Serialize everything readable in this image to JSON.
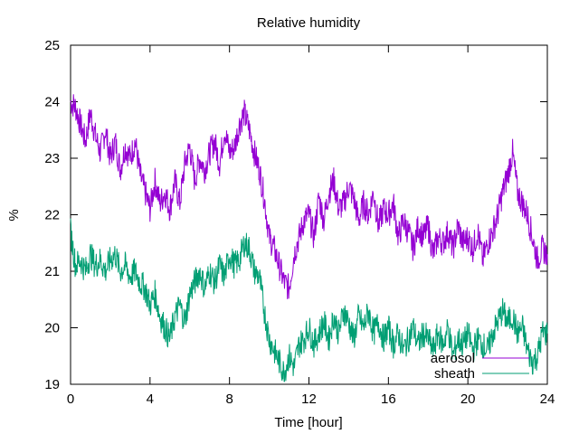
{
  "chart_data": {
    "type": "line",
    "title": "Relative humidity",
    "xlabel": "Time [hour]",
    "ylabel": "%",
    "xlim": [
      0,
      24
    ],
    "ylim": [
      19,
      25
    ],
    "xticks": [
      0,
      4,
      8,
      12,
      16,
      20,
      24
    ],
    "yticks": [
      19,
      20,
      21,
      22,
      23,
      24,
      25
    ],
    "grid": false,
    "legend_position": "bottom-right",
    "series": [
      {
        "name": "aerosol",
        "color": "#9400d3",
        "x": [
          0,
          0.25,
          0.5,
          0.75,
          1,
          1.25,
          1.5,
          1.75,
          2,
          2.25,
          2.5,
          2.75,
          3,
          3.25,
          3.5,
          3.75,
          4,
          4.25,
          4.5,
          4.75,
          5,
          5.25,
          5.5,
          5.75,
          6,
          6.25,
          6.5,
          6.75,
          7,
          7.25,
          7.5,
          7.75,
          8,
          8.25,
          8.5,
          8.75,
          9,
          9.25,
          9.5,
          9.75,
          10,
          10.25,
          10.5,
          10.75,
          11,
          11.25,
          11.5,
          11.75,
          12,
          12.25,
          12.5,
          12.75,
          13,
          13.25,
          13.5,
          13.75,
          14,
          14.25,
          14.5,
          14.75,
          15,
          15.25,
          15.5,
          15.75,
          16,
          16.25,
          16.5,
          16.75,
          17,
          17.25,
          17.5,
          17.75,
          18,
          18.25,
          18.5,
          18.75,
          19,
          19.25,
          19.5,
          19.75,
          20,
          20.25,
          20.5,
          20.75,
          21,
          21.25,
          21.5,
          21.75,
          22,
          22.25,
          22.5,
          22.75,
          23,
          23.25,
          23.5,
          23.75,
          24
        ],
        "values": [
          24.0,
          23.9,
          23.6,
          23.3,
          23.8,
          23.4,
          23.1,
          23.5,
          23.0,
          23.3,
          22.8,
          23.2,
          23.0,
          23.3,
          22.7,
          22.4,
          22.1,
          22.6,
          22.2,
          22.4,
          22.1,
          22.6,
          22.2,
          22.9,
          23.2,
          22.6,
          23.0,
          22.8,
          23.1,
          23.3,
          22.9,
          23.5,
          23.1,
          23.2,
          23.6,
          23.8,
          23.5,
          23.1,
          22.8,
          22.3,
          21.6,
          21.4,
          21.1,
          20.8,
          20.7,
          21.3,
          21.6,
          21.9,
          22.0,
          21.6,
          22.3,
          21.9,
          22.4,
          22.6,
          22.1,
          22.2,
          22.5,
          22.3,
          21.9,
          22.2,
          22.0,
          22.4,
          21.8,
          22.1,
          22.0,
          22.2,
          21.6,
          21.9,
          21.7,
          21.4,
          21.8,
          21.6,
          21.8,
          21.3,
          21.6,
          21.5,
          21.7,
          21.4,
          21.8,
          21.5,
          21.6,
          21.4,
          21.7,
          21.2,
          21.5,
          21.7,
          22.0,
          22.4,
          22.7,
          23.1,
          22.4,
          22.2,
          22.0,
          21.6,
          21.2,
          21.4,
          21.3
        ]
      },
      {
        "name": "sheath",
        "color": "#009e73",
        "x": [
          0,
          0.25,
          0.5,
          0.75,
          1,
          1.25,
          1.5,
          1.75,
          2,
          2.25,
          2.5,
          2.75,
          3,
          3.25,
          3.5,
          3.75,
          4,
          4.25,
          4.5,
          4.75,
          5,
          5.25,
          5.5,
          5.75,
          6,
          6.25,
          6.5,
          6.75,
          7,
          7.25,
          7.5,
          7.75,
          8,
          8.25,
          8.5,
          8.75,
          9,
          9.25,
          9.5,
          9.75,
          10,
          10.25,
          10.5,
          10.75,
          11,
          11.25,
          11.5,
          11.75,
          12,
          12.25,
          12.5,
          12.75,
          13,
          13.25,
          13.5,
          13.75,
          14,
          14.25,
          14.5,
          14.75,
          15,
          15.25,
          15.5,
          15.75,
          16,
          16.25,
          16.5,
          16.75,
          17,
          17.25,
          17.5,
          17.75,
          18,
          18.25,
          18.5,
          18.75,
          19,
          19.25,
          19.5,
          19.75,
          20,
          20.25,
          20.5,
          20.75,
          21,
          21.25,
          21.5,
          21.75,
          22,
          22.25,
          22.5,
          22.75,
          23,
          23.25,
          23.5,
          23.75,
          24
        ],
        "values": [
          21.7,
          21.1,
          21.2,
          21.0,
          21.3,
          21.1,
          21.2,
          21.0,
          21.2,
          21.3,
          21.0,
          21.1,
          20.9,
          21.0,
          20.8,
          20.7,
          20.4,
          20.6,
          20.2,
          20.0,
          19.8,
          20.2,
          20.4,
          20.1,
          20.6,
          20.8,
          21.0,
          20.7,
          21.0,
          20.8,
          21.1,
          20.9,
          21.3,
          21.1,
          21.2,
          21.5,
          21.4,
          21.0,
          20.9,
          20.3,
          19.8,
          19.6,
          19.4,
          19.2,
          19.5,
          19.3,
          19.7,
          19.8,
          20.0,
          19.7,
          19.9,
          20.1,
          19.8,
          20.2,
          19.9,
          20.3,
          20.1,
          19.8,
          20.2,
          20.0,
          20.3,
          19.9,
          20.1,
          19.8,
          20.0,
          19.7,
          19.9,
          19.6,
          19.8,
          20.0,
          19.7,
          19.9,
          19.8,
          19.6,
          19.9,
          19.7,
          20.0,
          19.5,
          19.8,
          19.7,
          19.9,
          19.6,
          19.8,
          19.7,
          19.6,
          19.9,
          20.1,
          20.3,
          20.1,
          20.2,
          19.9,
          20.0,
          19.6,
          19.4,
          19.5,
          19.9,
          19.9
        ]
      }
    ]
  }
}
